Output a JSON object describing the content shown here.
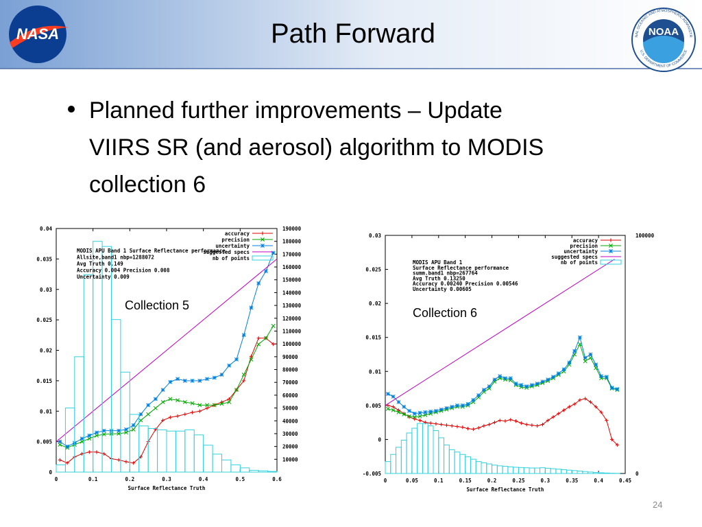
{
  "header": {
    "title": "Path Forward",
    "nasa_logo": "NASA",
    "noaa_logo": "NOAA",
    "noaa_ring_top": "NATIONAL OCEANIC AND ATMOSPHERIC ADMINISTRATION",
    "noaa_ring_bottom": "U.S. DEPARTMENT OF COMMERCE"
  },
  "bullet": {
    "lines": [
      "Planned further improvements – Update",
      "VIIRS SR (and aerosol) algorithm to MODIS",
      "collection 6"
    ]
  },
  "page_number": "24",
  "chart_data": [
    {
      "type": "line",
      "label": "Collection 5",
      "notes": [
        "MODIS APU Band 1 Surface Reflectance performance",
        "Allsite,band1 nbp=1288072",
        "Avg Truth 0.149",
        "Accuracy 0.004 Precision 0.008",
        "Uncertainty 0.009"
      ],
      "x_label": "Surface Reflectance Truth",
      "xlim": [
        0,
        0.6
      ],
      "xticks": [
        0,
        0.1,
        0.2,
        0.3,
        0.4,
        0.5,
        0.6
      ],
      "ylim": [
        0,
        0.04
      ],
      "yticks": [
        0,
        0.005,
        0.01,
        0.015,
        0.02,
        0.025,
        0.03,
        0.035,
        0.04
      ],
      "y2lim": [
        0,
        190000
      ],
      "y2ticks": [
        10000,
        20000,
        30000,
        40000,
        50000,
        60000,
        70000,
        80000,
        90000,
        100000,
        110000,
        120000,
        130000,
        140000,
        150000,
        160000,
        170000,
        180000,
        190000
      ],
      "legend": "top-right",
      "series": [
        {
          "name": "accuracy",
          "color": "#e00000",
          "marker": "plus",
          "x": [
            0.01,
            0.03,
            0.05,
            0.07,
            0.09,
            0.11,
            0.13,
            0.15,
            0.17,
            0.19,
            0.21,
            0.23,
            0.25,
            0.27,
            0.29,
            0.31,
            0.33,
            0.35,
            0.37,
            0.39,
            0.41,
            0.43,
            0.45,
            0.47,
            0.49,
            0.51,
            0.53,
            0.55,
            0.57,
            0.59
          ],
          "values": [
            0.002,
            0.0015,
            0.0025,
            0.003,
            0.0033,
            0.0033,
            0.003,
            0.0022,
            0.002,
            0.0017,
            0.0015,
            0.0025,
            0.005,
            0.007,
            0.0085,
            0.009,
            0.0092,
            0.0095,
            0.0098,
            0.01,
            0.0105,
            0.011,
            0.0115,
            0.012,
            0.0135,
            0.015,
            0.019,
            0.022,
            0.022,
            0.021
          ]
        },
        {
          "name": "precision",
          "color": "#00a800",
          "marker": "cross",
          "x": [
            0.01,
            0.03,
            0.05,
            0.07,
            0.09,
            0.11,
            0.13,
            0.15,
            0.17,
            0.19,
            0.21,
            0.23,
            0.25,
            0.27,
            0.29,
            0.31,
            0.33,
            0.35,
            0.37,
            0.39,
            0.41,
            0.43,
            0.45,
            0.47,
            0.49,
            0.51,
            0.53,
            0.55,
            0.57,
            0.59
          ],
          "values": [
            0.0045,
            0.004,
            0.0045,
            0.005,
            0.0055,
            0.006,
            0.0062,
            0.0063,
            0.0063,
            0.0065,
            0.007,
            0.0085,
            0.0095,
            0.0105,
            0.0115,
            0.012,
            0.0118,
            0.0115,
            0.0113,
            0.011,
            0.011,
            0.011,
            0.0112,
            0.0115,
            0.0135,
            0.016,
            0.0185,
            0.021,
            0.022,
            0.024
          ]
        },
        {
          "name": "uncertainty",
          "color": "#0080e0",
          "marker": "star",
          "x": [
            0.01,
            0.03,
            0.05,
            0.07,
            0.09,
            0.11,
            0.13,
            0.15,
            0.17,
            0.19,
            0.21,
            0.23,
            0.25,
            0.27,
            0.29,
            0.31,
            0.33,
            0.35,
            0.37,
            0.39,
            0.41,
            0.43,
            0.45,
            0.47,
            0.49,
            0.51,
            0.53,
            0.55,
            0.57,
            0.59
          ],
          "values": [
            0.005,
            0.0042,
            0.0048,
            0.0055,
            0.006,
            0.0065,
            0.0068,
            0.0068,
            0.0068,
            0.007,
            0.0077,
            0.0095,
            0.011,
            0.012,
            0.0135,
            0.0148,
            0.0153,
            0.015,
            0.015,
            0.015,
            0.0153,
            0.0155,
            0.016,
            0.0175,
            0.0185,
            0.0225,
            0.027,
            0.031,
            0.033,
            0.036
          ]
        },
        {
          "name": "suggested specs",
          "color": "#c000c0",
          "marker": "none",
          "x": [
            0,
            0.6
          ],
          "values": [
            0.005,
            0.035
          ]
        },
        {
          "name": "nb of points",
          "color": "#30d0e0",
          "type": "histogram",
          "axis": "y2",
          "bins": [
            0,
            0.025,
            0.05,
            0.075,
            0.1,
            0.125,
            0.15,
            0.175,
            0.2,
            0.225,
            0.25,
            0.275,
            0.3,
            0.325,
            0.35,
            0.375,
            0.4,
            0.425,
            0.45,
            0.475,
            0.5,
            0.525,
            0.55,
            0.575,
            0.6
          ],
          "values": [
            5700,
            50000,
            90000,
            154000,
            180000,
            176000,
            119000,
            78000,
            45000,
            36000,
            34000,
            33000,
            32000,
            32000,
            33000,
            29000,
            21000,
            14000,
            9500,
            5700,
            3300,
            1400,
            1000,
            500
          ]
        }
      ]
    },
    {
      "type": "line",
      "label": "Collection 6",
      "notes": [
        "MODIS APU Band 1",
        "Surface Reflectance performance",
        "summ.band1 nbp=267764",
        "Avg Truth 0.13250",
        "Accuracy 0.00240 Precision 0.00546",
        "Uncertainty 0.00605"
      ],
      "x_label": "Surface Reflectance Truth",
      "xlim": [
        0,
        0.45
      ],
      "xticks": [
        0,
        0.05,
        0.1,
        0.15,
        0.2,
        0.25,
        0.3,
        0.35,
        0.4,
        0.45
      ],
      "ylim": [
        -0.005,
        0.03
      ],
      "yticks": [
        -0.005,
        0,
        0.005,
        0.01,
        0.015,
        0.02,
        0.025,
        0.03
      ],
      "y2lim": [
        0,
        100000
      ],
      "y2ticks": [
        0,
        100000
      ],
      "legend": "top-right",
      "series": [
        {
          "name": "accuracy",
          "color": "#e00000",
          "marker": "plus",
          "x": [
            0.005,
            0.015,
            0.025,
            0.035,
            0.045,
            0.055,
            0.065,
            0.075,
            0.085,
            0.095,
            0.105,
            0.115,
            0.125,
            0.135,
            0.145,
            0.155,
            0.165,
            0.175,
            0.185,
            0.195,
            0.205,
            0.215,
            0.225,
            0.235,
            0.245,
            0.255,
            0.265,
            0.275,
            0.285,
            0.295,
            0.305,
            0.315,
            0.325,
            0.335,
            0.345,
            0.355,
            0.365,
            0.375,
            0.385,
            0.395,
            0.405,
            0.415,
            0.425,
            0.435
          ],
          "values": [
            0.005,
            0.0048,
            0.0043,
            0.0038,
            0.0033,
            0.003,
            0.0028,
            0.0025,
            0.0024,
            0.0023,
            0.0022,
            0.0021,
            0.002,
            0.0019,
            0.0018,
            0.0016,
            0.0015,
            0.0017,
            0.002,
            0.0022,
            0.0025,
            0.0028,
            0.0027,
            0.0029,
            0.0027,
            0.0024,
            0.0022,
            0.0021,
            0.002,
            0.0022,
            0.0028,
            0.0033,
            0.0038,
            0.0043,
            0.0048,
            0.0052,
            0.0058,
            0.006,
            0.0055,
            0.0048,
            0.004,
            0.0028,
            0,
            -0.0008
          ]
        },
        {
          "name": "precision",
          "color": "#00a800",
          "marker": "cross",
          "x": [
            0.005,
            0.015,
            0.025,
            0.035,
            0.045,
            0.055,
            0.065,
            0.075,
            0.085,
            0.095,
            0.105,
            0.115,
            0.125,
            0.135,
            0.145,
            0.155,
            0.165,
            0.175,
            0.185,
            0.195,
            0.205,
            0.215,
            0.225,
            0.235,
            0.245,
            0.255,
            0.265,
            0.275,
            0.285,
            0.295,
            0.305,
            0.315,
            0.325,
            0.335,
            0.345,
            0.355,
            0.365,
            0.375,
            0.385,
            0.395,
            0.405,
            0.415,
            0.425,
            0.435
          ],
          "values": [
            0.0045,
            0.0043,
            0.004,
            0.0037,
            0.0034,
            0.0033,
            0.0034,
            0.0036,
            0.0038,
            0.004,
            0.0042,
            0.0044,
            0.0046,
            0.0048,
            0.0048,
            0.005,
            0.0055,
            0.0062,
            0.007,
            0.0075,
            0.0085,
            0.009,
            0.0088,
            0.0087,
            0.008,
            0.0077,
            0.0076,
            0.0078,
            0.008,
            0.0083,
            0.0086,
            0.009,
            0.0095,
            0.01,
            0.011,
            0.0125,
            0.014,
            0.0115,
            0.012,
            0.0105,
            0.009,
            0.009,
            0.0075,
            0.0073
          ]
        },
        {
          "name": "uncertainty",
          "color": "#0080e0",
          "marker": "star",
          "x": [
            0.005,
            0.015,
            0.025,
            0.035,
            0.045,
            0.055,
            0.065,
            0.075,
            0.085,
            0.095,
            0.105,
            0.115,
            0.125,
            0.135,
            0.145,
            0.155,
            0.165,
            0.175,
            0.185,
            0.195,
            0.205,
            0.215,
            0.225,
            0.235,
            0.245,
            0.255,
            0.265,
            0.275,
            0.285,
            0.295,
            0.305,
            0.315,
            0.325,
            0.335,
            0.345,
            0.355,
            0.365,
            0.375,
            0.385,
            0.395,
            0.405,
            0.415,
            0.425,
            0.435
          ],
          "values": [
            0.0067,
            0.0063,
            0.0055,
            0.0048,
            0.0042,
            0.0038,
            0.0039,
            0.004,
            0.0041,
            0.0042,
            0.0044,
            0.0046,
            0.0048,
            0.005,
            0.005,
            0.0052,
            0.0058,
            0.0065,
            0.0073,
            0.0078,
            0.0088,
            0.0093,
            0.009,
            0.009,
            0.0082,
            0.008,
            0.0078,
            0.008,
            0.0082,
            0.0085,
            0.0088,
            0.0092,
            0.0097,
            0.0103,
            0.0113,
            0.013,
            0.015,
            0.012,
            0.0125,
            0.011,
            0.0093,
            0.0092,
            0.0076,
            0.0074
          ]
        },
        {
          "name": "suggested specs",
          "color": "#c000c0",
          "marker": "none",
          "x": [
            0,
            0.43
          ],
          "values": [
            0.005,
            0.0265
          ]
        },
        {
          "name": "nb of points",
          "color": "#30d0e0",
          "type": "histogram",
          "axis": "y2",
          "bins": [
            0,
            0.01,
            0.02,
            0.03,
            0.04,
            0.05,
            0.06,
            0.07,
            0.08,
            0.09,
            0.1,
            0.11,
            0.12,
            0.13,
            0.14,
            0.15,
            0.16,
            0.17,
            0.18,
            0.19,
            0.2,
            0.21,
            0.22,
            0.23,
            0.24,
            0.25,
            0.26,
            0.27,
            0.28,
            0.29,
            0.3,
            0.31,
            0.32,
            0.33,
            0.34,
            0.35,
            0.36,
            0.37,
            0.38,
            0.39,
            0.4,
            0.41,
            0.42,
            0.43,
            0.44
          ],
          "values": [
            5000,
            8000,
            11000,
            14000,
            17000,
            19000,
            21000,
            21000,
            20000,
            18000,
            15000,
            12000,
            10000,
            9000,
            8000,
            7000,
            6000,
            5000,
            4500,
            4000,
            3500,
            3200,
            3000,
            2800,
            2600,
            2500,
            2400,
            2300,
            2300,
            2400,
            2200,
            2000,
            1800,
            1600,
            1400,
            1200,
            1000,
            800,
            600,
            400,
            300,
            200,
            100,
            50
          ]
        }
      ]
    }
  ]
}
